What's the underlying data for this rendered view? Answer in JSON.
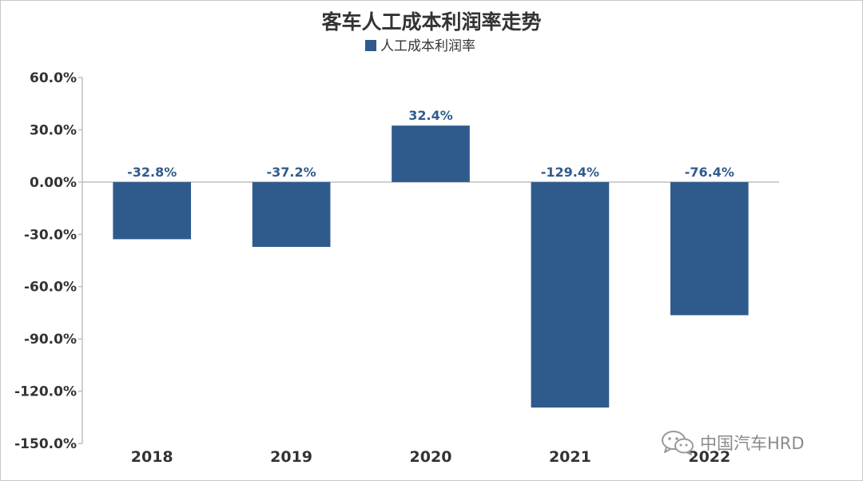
{
  "chart_data": {
    "type": "bar",
    "title": "客车人工成本利润率走势",
    "legend": {
      "position": "top-center"
    },
    "categories": [
      "2018",
      "2019",
      "2020",
      "2021",
      "2022"
    ],
    "series": [
      {
        "name": "人工成本利润率",
        "values": [
          -32.8,
          -37.2,
          32.4,
          -129.4,
          -76.4
        ],
        "labels": [
          "-32.8%",
          "-37.2%",
          "32.4%",
          "-129.4%",
          "-76.4%"
        ]
      }
    ],
    "ylim": [
      -150,
      60
    ],
    "yticks": [
      60,
      30,
      0,
      -30,
      -60,
      -90,
      -120,
      -150
    ],
    "ytick_labels": [
      "60.0%",
      "30.0%",
      "0.00%",
      "-30.0%",
      "-60.0%",
      "-90.0%",
      "-120.0%",
      "-150.0%"
    ],
    "grid": false,
    "colors": {
      "bar": "#2f5b8c",
      "label": "#2f5b8c",
      "axis": "#bfbfbf",
      "text": "#333333"
    }
  },
  "watermark": {
    "text": "中国汽车HRD",
    "icon": "wechat-icon"
  }
}
